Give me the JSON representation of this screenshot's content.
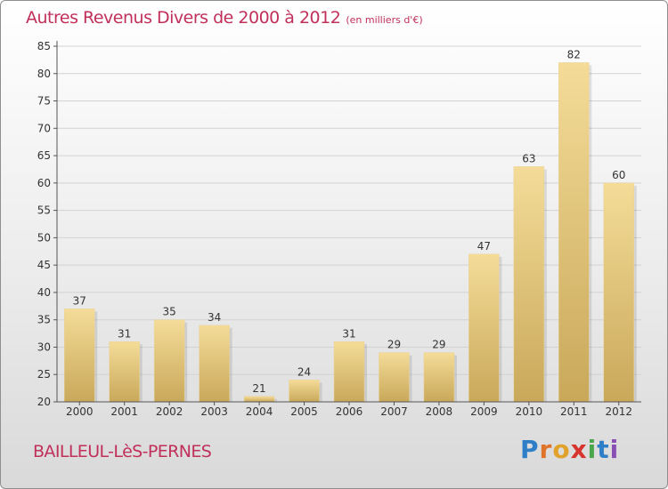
{
  "header": {
    "title": "Autres Revenus Divers de 2000 à 2012",
    "subtitle": "(en milliers d'€)"
  },
  "footer": {
    "town": "BAILLEUL-LèS-PERNES",
    "brand_letters": [
      "P",
      "r",
      "o",
      "x",
      "i",
      "t",
      "i"
    ],
    "brand_colors": [
      "#2f7fc8",
      "#e0732a",
      "#e0a22a",
      "#d8342e",
      "#4aa64a",
      "#2f7fc8",
      "#8a4fb5"
    ]
  },
  "colors": {
    "title": "#c0305a",
    "bar_light": "#f4dc98",
    "bar_dark": "#c9a85a",
    "axis": "#555555",
    "grid": "#d2d2d2"
  },
  "chart_data": {
    "type": "bar",
    "categories": [
      "2000",
      "2001",
      "2002",
      "2003",
      "2004",
      "2005",
      "2006",
      "2007",
      "2008",
      "2009",
      "2010",
      "2011",
      "2012"
    ],
    "values": [
      37,
      31,
      35,
      34,
      21,
      24,
      31,
      29,
      29,
      47,
      63,
      82,
      60
    ],
    "ylim": [
      20,
      85
    ],
    "yticks": [
      20,
      25,
      30,
      35,
      40,
      45,
      50,
      55,
      60,
      65,
      70,
      75,
      80,
      85
    ],
    "xlabel": "",
    "ylabel": "",
    "grid": true
  }
}
